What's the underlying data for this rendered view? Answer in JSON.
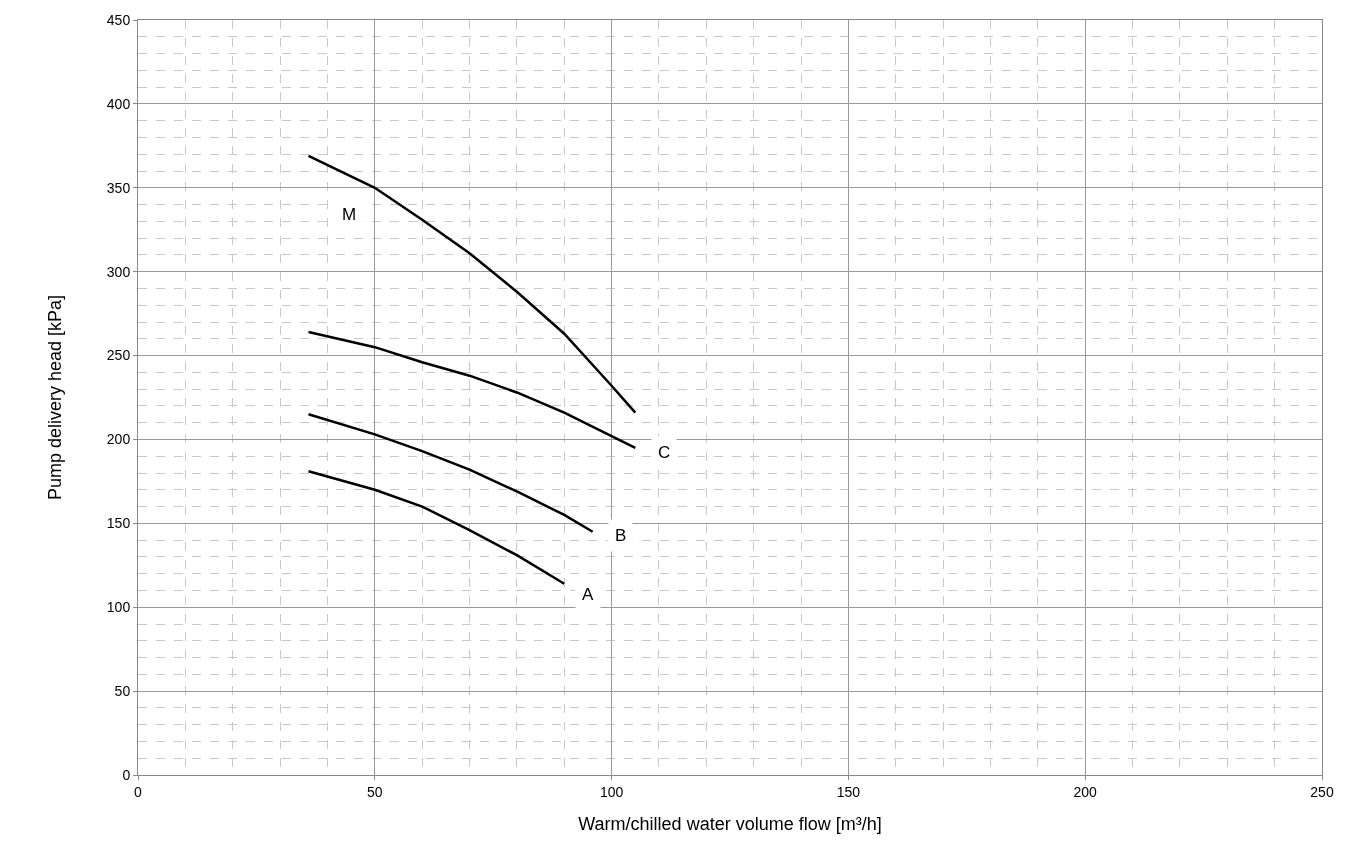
{
  "chart_data": {
    "type": "line",
    "xlabel": "Warm/chilled water volume flow [m³/h]",
    "ylabel": "Pump delivery head [kPa]",
    "xlim": [
      0,
      250
    ],
    "xticks": [
      0,
      50,
      100,
      150,
      200,
      250
    ],
    "ylim": [
      0,
      450
    ],
    "yticks": [
      0,
      50,
      100,
      150,
      200,
      250,
      300,
      350,
      400,
      450
    ],
    "grid": true,
    "marker": "none",
    "line_style": "solid",
    "series": [
      {
        "color": "#000000",
        "x": [
          36,
          50,
          60,
          70,
          80,
          90,
          100,
          105
        ],
        "values": [
          369,
          350,
          331,
          311,
          288,
          263,
          232,
          216
        ]
      },
      {
        "color": "#000000",
        "x": [
          36,
          50,
          60,
          70,
          80,
          90,
          100,
          105
        ],
        "values": [
          264,
          255,
          246,
          238,
          228,
          216,
          202,
          195
        ]
      },
      {
        "color": "#000000",
        "x": [
          36,
          50,
          60,
          70,
          80,
          90,
          96
        ],
        "values": [
          215,
          203,
          193,
          182,
          169,
          155,
          145
        ]
      },
      {
        "color": "#000000",
        "x": [
          36,
          50,
          60,
          70,
          80,
          90
        ],
        "values": [
          181,
          170,
          160,
          146,
          131,
          114
        ]
      }
    ],
    "annotations": [
      {
        "text": "M",
        "x": 44.5,
        "y": 334
      },
      {
        "text": "C",
        "x": 111,
        "y": 192
      },
      {
        "text": "B",
        "x": 101.8,
        "y": 142.5
      },
      {
        "text": "A",
        "x": 95,
        "y": 107.5
      }
    ]
  }
}
